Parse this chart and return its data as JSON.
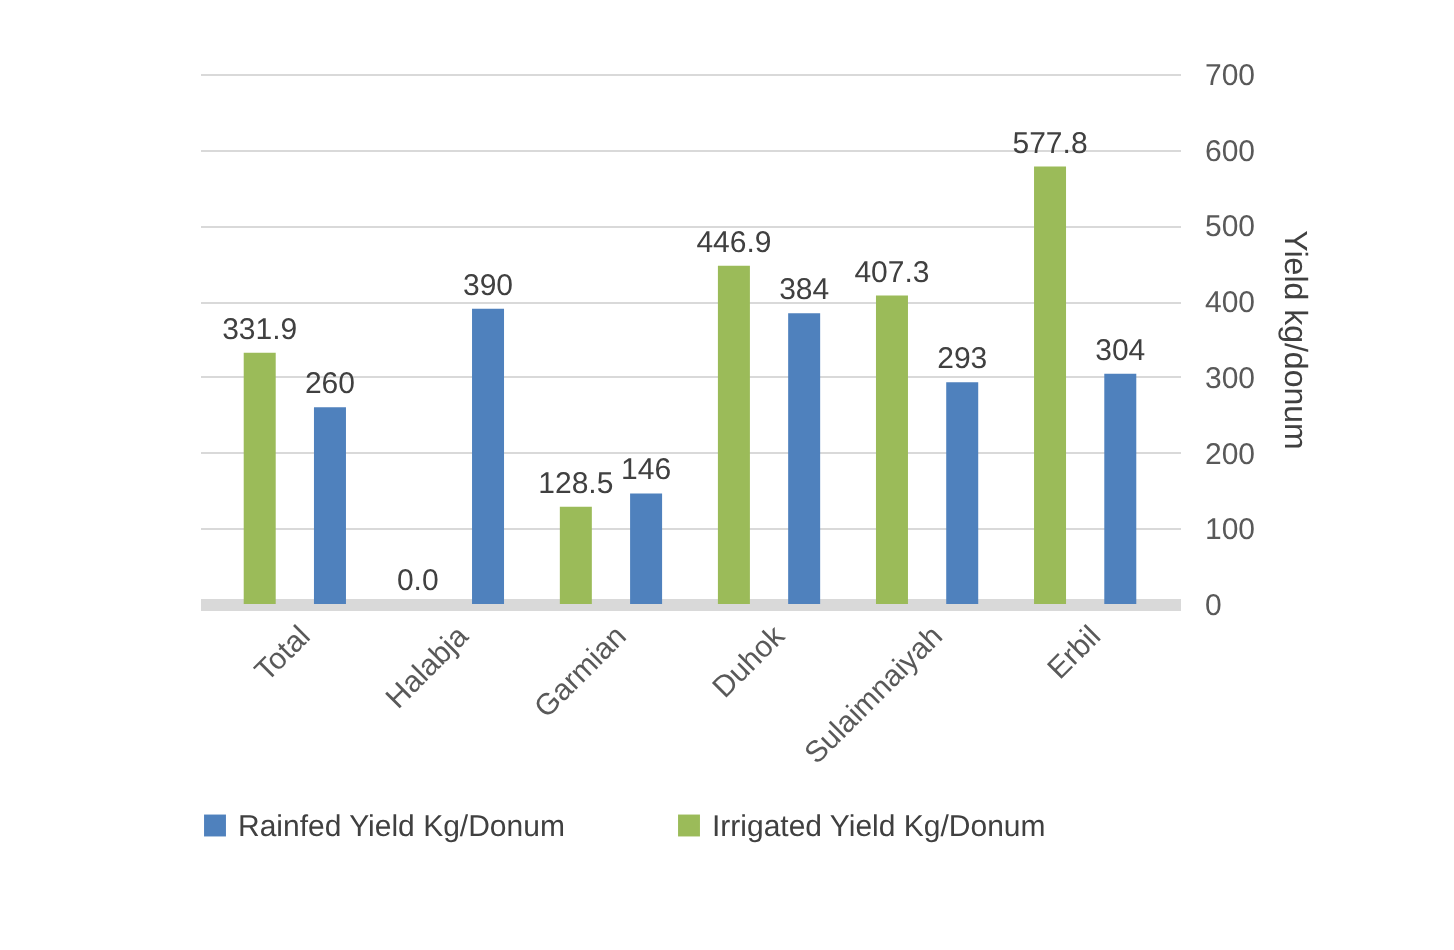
{
  "chart_data": {
    "type": "bar",
    "ylabel": "Yield kg/donum",
    "categories": [
      "Total",
      "Halabja",
      "Garmian",
      "Duhok",
      "Sulaimnaiyah",
      "Erbil"
    ],
    "series": [
      {
        "name": "Rainfed  Yield Kg/Donum",
        "color": "#4f81bd",
        "values": [
          260,
          390,
          146,
          384,
          293,
          304
        ],
        "value_labels": [
          "260",
          "390",
          "146",
          "384",
          "293",
          "304"
        ]
      },
      {
        "name": "Irrigated  Yield Kg/Donum",
        "color": "#9bbb59",
        "values": [
          331.9,
          0.0,
          128.5,
          446.9,
          407.3,
          577.8
        ],
        "value_labels": [
          "331.9",
          "0.0",
          "128.5",
          "446.9",
          "407.3",
          "577.8"
        ]
      }
    ],
    "ylim": [
      0,
      700
    ],
    "yticks": [
      0,
      100,
      200,
      300,
      400,
      500,
      600,
      700
    ],
    "grid": "y",
    "legend": "bottom"
  }
}
